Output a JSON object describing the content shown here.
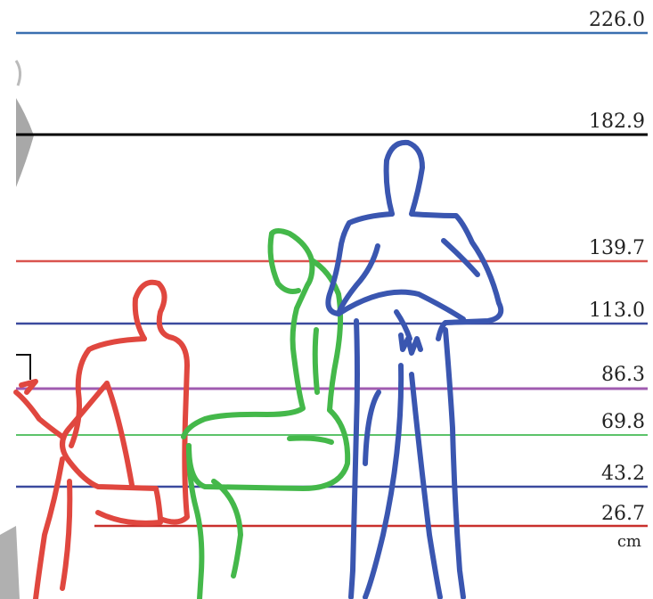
{
  "unit": "cm",
  "levels": [
    {
      "label": "226.0",
      "color": "#3a6fb0"
    },
    {
      "label": "182.9",
      "color": "#000000"
    },
    {
      "label": "139.7",
      "color": "#d9534f"
    },
    {
      "label": "113.0",
      "color": "#3b4a9e"
    },
    {
      "label": "86.3",
      "color": "#a05bb0"
    },
    {
      "label": "69.8",
      "color": "#5cc36a"
    },
    {
      "label": "43.2",
      "color": "#3b4a9e"
    },
    {
      "label": "26.7",
      "color": "#c9302c"
    }
  ],
  "figures": [
    {
      "name": "standing-figure",
      "color": "#3a56b0"
    },
    {
      "name": "leaning-figure",
      "color": "#44b84a"
    },
    {
      "name": "seated-figure",
      "color": "#e0473f"
    }
  ]
}
